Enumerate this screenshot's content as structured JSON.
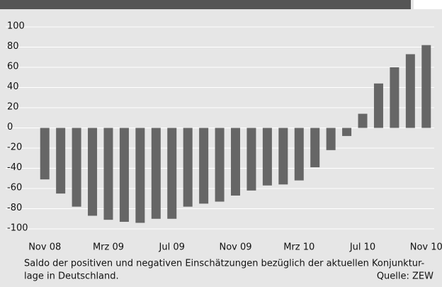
{
  "chart_data": {
    "type": "bar",
    "categories": [
      "Nov 08",
      null,
      null,
      null,
      "Mrz 09",
      null,
      null,
      null,
      "Jul 09",
      null,
      null,
      null,
      "Nov 09",
      null,
      null,
      null,
      "Mrz 10",
      null,
      null,
      null,
      "Jul 10",
      null,
      null,
      null,
      "Nov 10"
    ],
    "values": [
      -51,
      -65,
      -78,
      -87,
      -91,
      -93,
      -94,
      -90,
      -90,
      -78,
      -75,
      -73,
      -67,
      -62,
      -57,
      -56,
      -52,
      -39,
      -22,
      -8,
      14,
      44,
      60,
      73,
      82
    ],
    "color": "#666666",
    "ylim": [
      -100,
      100
    ],
    "yticks": [
      100,
      80,
      60,
      40,
      20,
      0,
      -20,
      -40,
      -60,
      -80,
      -100
    ],
    "grid": true,
    "note": [
      "Saldo der positiven und negativen Einschätzungen bezüglich der aktuellen Konjunktur-",
      "lage in Deutschland."
    ],
    "source": "Quelle: ZEW"
  }
}
